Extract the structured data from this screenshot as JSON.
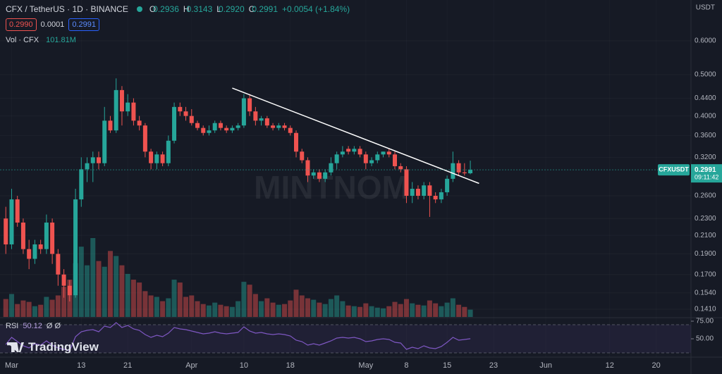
{
  "chart_data": {
    "type": "candlestick",
    "title": "CFX / TetherUS · 1D · BINANCE",
    "ohlc_header": [
      {
        "key": "O",
        "value": "0.2936"
      },
      {
        "key": "H",
        "value": "0.3143"
      },
      {
        "key": "L",
        "value": "0.2920"
      },
      {
        "key": "C",
        "value": "0.2991"
      }
    ],
    "change": "+0.0054 (+1.84%)",
    "bid": "0.2990",
    "spread": "0.0001",
    "ask": "0.2991",
    "quote_currency": "USDT",
    "symbol": "CFXUSDT",
    "last_price": "0.2991",
    "countdown": "09:11:42",
    "watermark": "MINTNOM",
    "brand": "TradingView",
    "up_color": "#26a69a",
    "down_color": "#ef5350",
    "log_scale": true,
    "candles": {
      "open": [
        0.23,
        0.2,
        0.255,
        0.225,
        0.195,
        0.185,
        0.2,
        0.195,
        0.225,
        0.19,
        0.17,
        0.16,
        0.152,
        0.255,
        0.3,
        0.31,
        0.32,
        0.31,
        0.39,
        0.37,
        0.46,
        0.41,
        0.43,
        0.39,
        0.38,
        0.33,
        0.31,
        0.325,
        0.31,
        0.35,
        0.42,
        0.41,
        0.4,
        0.385,
        0.375,
        0.365,
        0.37,
        0.385,
        0.375,
        0.37,
        0.375,
        0.38,
        0.44,
        0.41,
        0.39,
        0.395,
        0.38,
        0.375,
        0.38,
        0.375,
        0.365,
        0.33,
        0.315,
        0.29,
        0.295,
        0.285,
        0.295,
        0.31,
        0.325,
        0.335,
        0.33,
        0.335,
        0.325,
        0.31,
        0.315,
        0.325,
        0.33,
        0.325,
        0.305,
        0.3,
        0.26,
        0.27,
        0.26,
        0.275,
        0.26,
        0.255,
        0.265,
        0.285,
        0.31,
        0.295,
        0.2936
      ],
      "high": [
        0.245,
        0.27,
        0.26,
        0.23,
        0.205,
        0.205,
        0.205,
        0.235,
        0.23,
        0.195,
        0.175,
        0.165,
        0.27,
        0.32,
        0.32,
        0.33,
        0.33,
        0.42,
        0.4,
        0.49,
        0.47,
        0.45,
        0.44,
        0.4,
        0.385,
        0.335,
        0.33,
        0.33,
        0.36,
        0.43,
        0.43,
        0.42,
        0.415,
        0.39,
        0.38,
        0.38,
        0.39,
        0.39,
        0.38,
        0.38,
        0.385,
        0.45,
        0.45,
        0.42,
        0.4,
        0.4,
        0.385,
        0.385,
        0.385,
        0.38,
        0.37,
        0.335,
        0.32,
        0.3,
        0.3,
        0.3,
        0.32,
        0.33,
        0.34,
        0.34,
        0.34,
        0.34,
        0.33,
        0.32,
        0.33,
        0.33,
        0.335,
        0.33,
        0.31,
        0.305,
        0.28,
        0.275,
        0.28,
        0.28,
        0.265,
        0.27,
        0.29,
        0.33,
        0.315,
        0.31,
        0.3143
      ],
      "low": [
        0.19,
        0.195,
        0.22,
        0.19,
        0.175,
        0.18,
        0.19,
        0.19,
        0.18,
        0.16,
        0.15,
        0.147,
        0.15,
        0.245,
        0.28,
        0.28,
        0.3,
        0.305,
        0.365,
        0.365,
        0.38,
        0.4,
        0.38,
        0.37,
        0.32,
        0.3,
        0.3,
        0.305,
        0.305,
        0.345,
        0.4,
        0.39,
        0.38,
        0.37,
        0.36,
        0.36,
        0.365,
        0.37,
        0.365,
        0.365,
        0.37,
        0.375,
        0.4,
        0.38,
        0.38,
        0.375,
        0.37,
        0.37,
        0.37,
        0.36,
        0.32,
        0.31,
        0.28,
        0.285,
        0.28,
        0.28,
        0.29,
        0.3,
        0.32,
        0.325,
        0.325,
        0.32,
        0.3,
        0.305,
        0.31,
        0.32,
        0.32,
        0.3,
        0.295,
        0.25,
        0.25,
        0.255,
        0.255,
        0.232,
        0.25,
        0.25,
        0.26,
        0.28,
        0.29,
        0.29,
        0.292
      ],
      "close": [
        0.2,
        0.255,
        0.225,
        0.195,
        0.185,
        0.2,
        0.195,
        0.225,
        0.19,
        0.17,
        0.16,
        0.152,
        0.255,
        0.3,
        0.31,
        0.32,
        0.31,
        0.39,
        0.37,
        0.46,
        0.41,
        0.43,
        0.39,
        0.38,
        0.33,
        0.31,
        0.325,
        0.31,
        0.35,
        0.42,
        0.41,
        0.4,
        0.385,
        0.375,
        0.365,
        0.37,
        0.385,
        0.375,
        0.37,
        0.375,
        0.38,
        0.44,
        0.41,
        0.39,
        0.395,
        0.38,
        0.375,
        0.38,
        0.375,
        0.365,
        0.33,
        0.315,
        0.29,
        0.295,
        0.285,
        0.295,
        0.31,
        0.325,
        0.33,
        0.33,
        0.335,
        0.325,
        0.31,
        0.315,
        0.325,
        0.33,
        0.325,
        0.305,
        0.3,
        0.26,
        0.27,
        0.26,
        0.275,
        0.26,
        0.255,
        0.265,
        0.285,
        0.31,
        0.295,
        0.2936,
        0.2991
      ]
    },
    "xlim": [
      -1,
      118
    ],
    "xticks": [
      {
        "value": 1,
        "label": "Mar"
      },
      {
        "value": 13,
        "label": "13"
      },
      {
        "value": 21,
        "label": "21"
      },
      {
        "value": 32,
        "label": "Apr"
      },
      {
        "value": 41,
        "label": "10"
      },
      {
        "value": 49,
        "label": "18"
      },
      {
        "value": 62,
        "label": "May"
      },
      {
        "value": 69,
        "label": "8"
      },
      {
        "value": 76,
        "label": "15"
      },
      {
        "value": 84,
        "label": "23"
      },
      {
        "value": 93,
        "label": "Jun"
      },
      {
        "value": 104,
        "label": "12"
      },
      {
        "value": 112,
        "label": "20"
      }
    ],
    "ylim": [
      0.1352,
      0.748
    ],
    "yticks": [
      {
        "value": 0.6,
        "label": "0.6000"
      },
      {
        "value": 0.5,
        "label": "0.5000"
      },
      {
        "value": 0.44,
        "label": "0.4400"
      },
      {
        "value": 0.4,
        "label": "0.4000"
      },
      {
        "value": 0.36,
        "label": "0.3600"
      },
      {
        "value": 0.32,
        "label": "0.3200"
      },
      {
        "value": 0.26,
        "label": "0.2600"
      },
      {
        "value": 0.23,
        "label": "0.2300"
      },
      {
        "value": 0.21,
        "label": "0.2100"
      },
      {
        "value": 0.19,
        "label": "0.1900"
      },
      {
        "value": 0.17,
        "label": "0.1700"
      },
      {
        "value": 0.154,
        "label": "0.1540"
      },
      {
        "value": 0.141,
        "label": "0.1410"
      }
    ],
    "trendline": {
      "color": "#ffffff",
      "x": [
        39,
        81.5
      ],
      "y": [
        0.465,
        0.278
      ]
    },
    "volume": {
      "title": "Vol · CFX",
      "value_label": "101.81M",
      "values": [
        250,
        320,
        180,
        230,
        210,
        150,
        170,
        280,
        240,
        300,
        420,
        520,
        750,
        980,
        720,
        1100,
        780,
        700,
        920,
        850,
        720,
        600,
        520,
        480,
        360,
        300,
        280,
        220,
        260,
        520,
        480,
        280,
        300,
        220,
        180,
        160,
        200,
        170,
        150,
        140,
        220,
        490,
        450,
        320,
        220,
        260,
        200,
        170,
        180,
        230,
        380,
        300,
        260,
        240,
        200,
        180,
        250,
        300,
        220,
        160,
        150,
        140,
        190,
        150,
        130,
        120,
        150,
        210,
        180,
        250,
        190,
        170,
        160,
        230,
        190,
        150,
        200,
        260,
        170,
        140,
        101.81
      ]
    },
    "rsi": {
      "title": "RSI",
      "settings": "Ø Ø",
      "color": "#7e57c2",
      "band": [
        30,
        70
      ],
      "ylim": [
        26,
        79
      ],
      "yticks": [
        {
          "value": 75,
          "label": "75.00"
        },
        {
          "value": 50,
          "label": "50.00"
        }
      ],
      "values": [
        42,
        52,
        46,
        40,
        37,
        43,
        41,
        47,
        41,
        37,
        35,
        33,
        53,
        60,
        62,
        63,
        60,
        68,
        66,
        73,
        66,
        69,
        64,
        62,
        56,
        52,
        55,
        53,
        58,
        66,
        64,
        63,
        61,
        59,
        57,
        58,
        60,
        58,
        57,
        58,
        59,
        67,
        61,
        58,
        59,
        57,
        56,
        57,
        56,
        54,
        48,
        46,
        41,
        43,
        41,
        44,
        47,
        51,
        52,
        51,
        52,
        50,
        46,
        47,
        49,
        50,
        49,
        45,
        44,
        35,
        38,
        36,
        40,
        37,
        36,
        39,
        45,
        52,
        48,
        49,
        50.12
      ]
    }
  }
}
